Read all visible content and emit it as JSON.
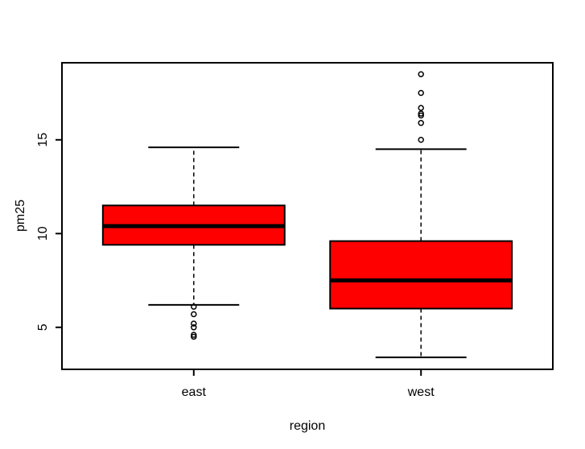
{
  "figure": {
    "background": "#ffffff"
  },
  "chart_data": {
    "type": "boxplot",
    "title": "",
    "xlabel": "region",
    "ylabel": "pm25",
    "categories": [
      "east",
      "west"
    ],
    "yticks": [
      5,
      10,
      15
    ],
    "ylim": [
      2.76,
      19.11
    ],
    "xlim": [
      0.42,
      2.58
    ],
    "positions": [
      1,
      2
    ],
    "box_width": 0.8,
    "cap_width": 0.4,
    "box_fill": "#ff0000",
    "line_color": "#000000",
    "background": "#ffffff",
    "grid": false,
    "legend": null,
    "series": [
      {
        "name": "east",
        "position": 1,
        "whisker_low": 6.2,
        "q1": 9.4,
        "median": 10.4,
        "q3": 11.5,
        "whisker_high": 14.6,
        "outliers": [
          6.1,
          5.7,
          5.2,
          5.0,
          4.6,
          4.5
        ]
      },
      {
        "name": "west",
        "position": 2,
        "whisker_low": 3.4,
        "q1": 6.0,
        "median": 7.5,
        "q3": 9.6,
        "whisker_high": 14.5,
        "outliers": [
          15.0,
          15.9,
          16.3,
          16.4,
          16.7,
          17.5,
          18.5
        ]
      }
    ]
  }
}
